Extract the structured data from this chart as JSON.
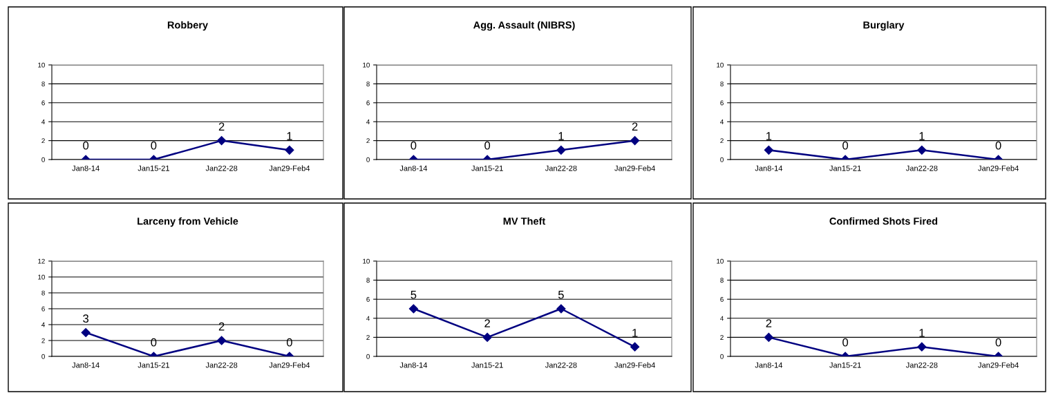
{
  "chart_data": [
    {
      "type": "line",
      "title": "Robbery",
      "categories": [
        "Jan8-14",
        "Jan15-21",
        "Jan22-28",
        "Jan29-Feb4"
      ],
      "values": [
        0,
        0,
        2,
        1
      ],
      "color": "#000080",
      "ylim": [
        0,
        10
      ],
      "yticks": [
        0,
        2,
        4,
        6,
        8,
        10
      ],
      "grid": "y",
      "marker": "diamond",
      "data_labels": true
    },
    {
      "type": "line",
      "title": "Agg. Assault (NIBRS)",
      "categories": [
        "Jan8-14",
        "Jan15-21",
        "Jan22-28",
        "Jan29-Feb4"
      ],
      "values": [
        0,
        0,
        1,
        2
      ],
      "color": "#000080",
      "ylim": [
        0,
        10
      ],
      "yticks": [
        0,
        2,
        4,
        6,
        8,
        10
      ],
      "grid": "y",
      "marker": "diamond",
      "data_labels": true
    },
    {
      "type": "line",
      "title": "Burglary",
      "categories": [
        "Jan8-14",
        "Jan15-21",
        "Jan22-28",
        "Jan29-Feb4"
      ],
      "values": [
        1,
        0,
        1,
        0
      ],
      "color": "#000080",
      "ylim": [
        0,
        10
      ],
      "yticks": [
        0,
        2,
        4,
        6,
        8,
        10
      ],
      "grid": "y",
      "marker": "diamond",
      "data_labels": true
    },
    {
      "type": "line",
      "title": "Larceny from Vehicle",
      "categories": [
        "Jan8-14",
        "Jan15-21",
        "Jan22-28",
        "Jan29-Feb4"
      ],
      "values": [
        3,
        0,
        2,
        0
      ],
      "color": "#000080",
      "ylim": [
        0,
        12
      ],
      "yticks": [
        0,
        2,
        4,
        6,
        8,
        10,
        12
      ],
      "grid": "y",
      "marker": "diamond",
      "data_labels": true
    },
    {
      "type": "line",
      "title": "MV Theft",
      "categories": [
        "Jan8-14",
        "Jan15-21",
        "Jan22-28",
        "Jan29-Feb4"
      ],
      "values": [
        5,
        2,
        5,
        1
      ],
      "color": "#000080",
      "ylim": [
        0,
        10
      ],
      "yticks": [
        0,
        2,
        4,
        6,
        8,
        10
      ],
      "grid": "y",
      "marker": "diamond",
      "data_labels": true
    },
    {
      "type": "line",
      "title": "Confirmed Shots Fired",
      "categories": [
        "Jan8-14",
        "Jan15-21",
        "Jan22-28",
        "Jan29-Feb4"
      ],
      "values": [
        2,
        0,
        1,
        0
      ],
      "color": "#000080",
      "ylim": [
        0,
        10
      ],
      "yticks": [
        0,
        2,
        4,
        6,
        8,
        10
      ],
      "grid": "y",
      "marker": "diamond",
      "data_labels": true
    }
  ]
}
